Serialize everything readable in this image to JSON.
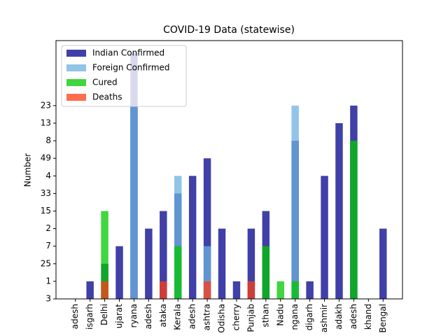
{
  "chart_data": {
    "type": "bar",
    "title": "COVID-19 Data (statewise)",
    "y_label": "Number",
    "categories": [
      "adesh",
      "isgarh",
      "Delhi",
      "ujarat",
      "ryana",
      "adesh",
      "ataka",
      "Kerala",
      "adesh",
      "ashtra",
      "Odisha",
      "cherry",
      "Punjab",
      "sthan",
      "Nadu",
      "ngana",
      "digarh",
      "ashmir",
      "adakh",
      "adesh",
      "khand",
      "Bengal"
    ],
    "series": [
      {
        "name": "Indian Confirmed",
        "color": "#00008b",
        "values": [
          0,
          1,
          2,
          3,
          14,
          4,
          5,
          6,
          7,
          8,
          4,
          1,
          4,
          5,
          0,
          9,
          1,
          7,
          10,
          11,
          0,
          4
        ]
      },
      {
        "name": "Foreign Confirmed",
        "color": "#6cb0e0",
        "values": [
          0,
          0,
          0,
          0,
          11,
          0,
          0,
          7,
          0,
          3,
          0,
          0,
          0,
          0,
          0,
          11,
          0,
          0,
          0,
          0,
          0,
          0
        ]
      },
      {
        "name": "Cured",
        "color": "#00c800",
        "values": [
          0,
          0,
          5,
          0,
          0,
          0,
          0,
          3,
          0,
          0,
          0,
          0,
          0,
          3,
          1,
          1,
          0,
          0,
          0,
          9,
          0,
          0
        ]
      },
      {
        "name": "Deaths",
        "color": "#ff3c14",
        "values": [
          0,
          0,
          1,
          0,
          0,
          0,
          1,
          0,
          0,
          1,
          0,
          0,
          1,
          0,
          0,
          0,
          0,
          0,
          0,
          0,
          0,
          0
        ]
      }
    ],
    "ylim": [
      0,
      14.7
    ],
    "yticks": [
      {
        "value": 0,
        "label": "3"
      },
      {
        "value": 1,
        "label": "1"
      },
      {
        "value": 2,
        "label": "25"
      },
      {
        "value": 3,
        "label": "7"
      },
      {
        "value": 4,
        "label": "2"
      },
      {
        "value": 5,
        "label": "15"
      },
      {
        "value": 6,
        "label": "33"
      },
      {
        "value": 7,
        "label": "4"
      },
      {
        "value": 8,
        "label": "49"
      },
      {
        "value": 9,
        "label": "8"
      },
      {
        "value": 10,
        "label": "13"
      },
      {
        "value": 11,
        "label": "23"
      }
    ],
    "legend": "upper left"
  }
}
